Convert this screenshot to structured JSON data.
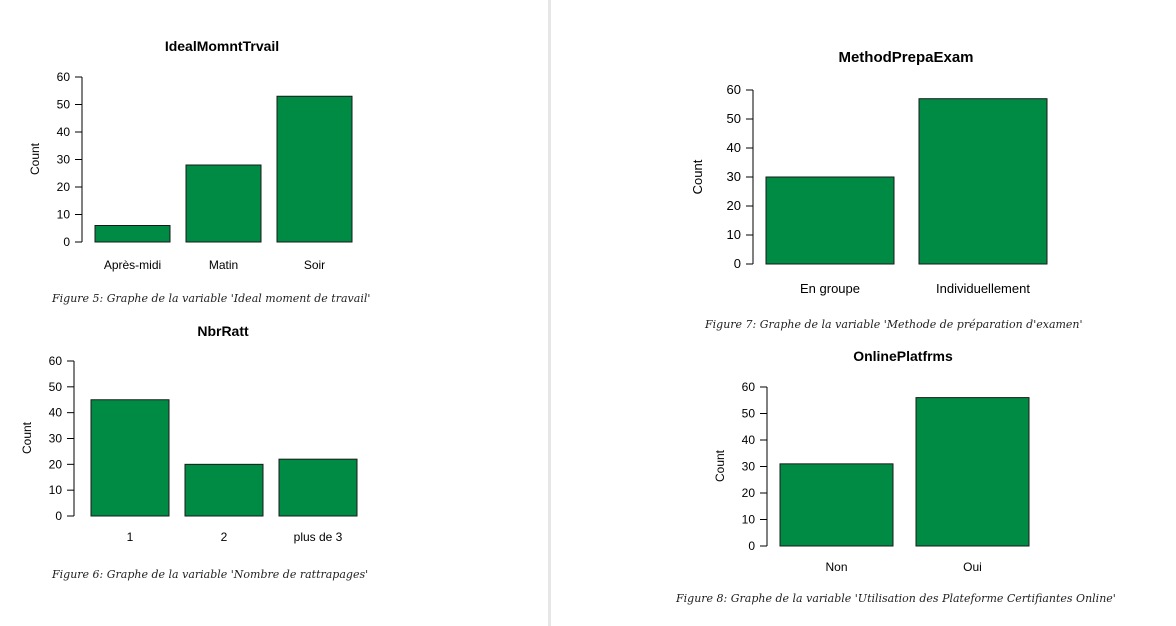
{
  "colors": {
    "bar_fill": "#008b45",
    "bar_stroke": "#1a1a1a",
    "axis": "#000000"
  },
  "captions": {
    "fig5": "Figure 5: Graphe de la variable 'Ideal moment de travail'",
    "fig6": "Figure 6: Graphe de la variable 'Nombre de rattrapages'",
    "fig7": "Figure 7: Graphe de la variable 'Methode de préparation d'examen'",
    "fig8": "Figure 8: Graphe de la variable 'Utilisation des Plateforme Certifiantes Online'"
  },
  "chart_data": [
    {
      "id": "ideal",
      "type": "bar",
      "title": "IdealMomntTrvail",
      "ylabel": "Count",
      "xlabel": "",
      "categories": [
        "Après-midi",
        "Matin",
        "Soir"
      ],
      "values": [
        6,
        28,
        53
      ],
      "yticks": [
        "0",
        "10",
        "20",
        "30",
        "40",
        "50",
        "60"
      ],
      "ylim": [
        0,
        60
      ],
      "grid": false,
      "legend": "none"
    },
    {
      "id": "nbr",
      "type": "bar",
      "title": "NbrRatt",
      "ylabel": "Count",
      "xlabel": "",
      "categories": [
        "1",
        "2",
        "plus de 3"
      ],
      "values": [
        45,
        20,
        22
      ],
      "yticks": [
        "0",
        "10",
        "20",
        "30",
        "40",
        "50",
        "60"
      ],
      "ylim": [
        0,
        60
      ],
      "grid": false,
      "legend": "none"
    },
    {
      "id": "method",
      "type": "bar",
      "title": "MethodPrepaExam",
      "ylabel": "Count",
      "xlabel": "",
      "categories": [
        "En groupe",
        "Individuellement"
      ],
      "values": [
        30,
        57
      ],
      "yticks": [
        "0",
        "10",
        "20",
        "30",
        "40",
        "50",
        "60"
      ],
      "ylim": [
        0,
        60
      ],
      "grid": false,
      "legend": "none"
    },
    {
      "id": "online",
      "type": "bar",
      "title": "OnlinePlatfrms",
      "ylabel": "Count",
      "xlabel": "",
      "categories": [
        "Non",
        "Oui"
      ],
      "values": [
        31,
        56
      ],
      "yticks": [
        "0",
        "10",
        "20",
        "30",
        "40",
        "50",
        "60"
      ],
      "ylim": [
        0,
        60
      ],
      "grid": false,
      "legend": "none"
    }
  ]
}
